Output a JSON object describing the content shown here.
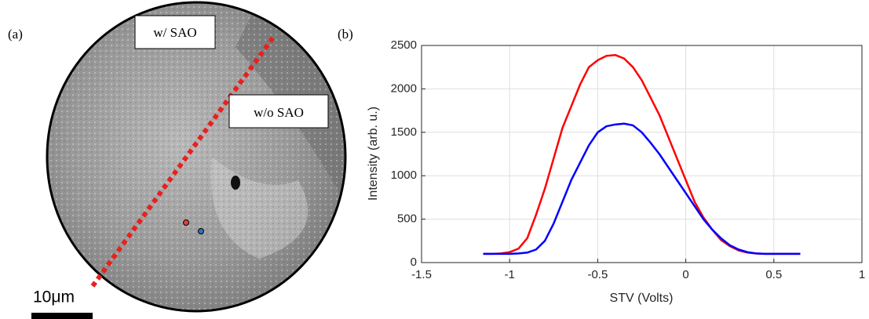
{
  "panel_a": {
    "label": "(a)",
    "annotations": [
      "w/ SAO",
      "w/o SAO"
    ],
    "scale_bar": "10μm"
  },
  "panel_b": {
    "label": "(b)"
  },
  "chart_data": {
    "type": "line",
    "x_label": "STV (Volts)",
    "y_label": "Intensity (arb. u.)",
    "x": [
      -1.15,
      -1.1,
      -1.05,
      -1.0,
      -0.95,
      -0.9,
      -0.85,
      -0.8,
      -0.75,
      -0.7,
      -0.65,
      -0.6,
      -0.55,
      -0.5,
      -0.45,
      -0.4,
      -0.35,
      -0.3,
      -0.25,
      -0.2,
      -0.15,
      -0.1,
      -0.05,
      0,
      0.05,
      0.1,
      0.15,
      0.2,
      0.25,
      0.3,
      0.35,
      0.4,
      0.45,
      0.5,
      0.55,
      0.6,
      0.65
    ],
    "series": [
      {
        "color": "#ff0000",
        "values": [
          100,
          100,
          105,
          120,
          160,
          280,
          550,
          850,
          1200,
          1550,
          1800,
          2050,
          2250,
          2330,
          2380,
          2390,
          2350,
          2250,
          2100,
          1900,
          1700,
          1450,
          1200,
          950,
          700,
          520,
          380,
          260,
          190,
          140,
          115,
          105,
          100,
          100,
          100,
          100,
          100
        ]
      },
      {
        "color": "#0000ff",
        "values": [
          100,
          100,
          100,
          100,
          105,
          115,
          150,
          250,
          450,
          700,
          950,
          1150,
          1350,
          1500,
          1570,
          1590,
          1600,
          1580,
          1500,
          1380,
          1250,
          1100,
          950,
          800,
          650,
          500,
          380,
          280,
          200,
          150,
          120,
          105,
          100,
          100,
          100,
          100,
          100
        ]
      }
    ],
    "xlim": [
      -1.5,
      1
    ],
    "xticks": [
      -1.5,
      -1,
      -0.5,
      0,
      0.5,
      1
    ],
    "ylim": [
      0,
      2500
    ],
    "yticks": [
      0,
      500,
      1000,
      1500,
      2000,
      2500
    ],
    "grid": true
  }
}
